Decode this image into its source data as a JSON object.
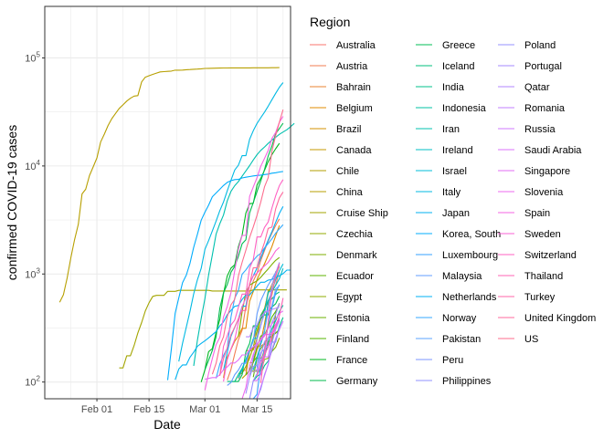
{
  "chart_data": {
    "type": "line",
    "xlabel": "Date",
    "ylabel": "confirmed COVID-19 cases",
    "xscale": "date",
    "yscale": "log10",
    "xlim": [
      "2020-01-18",
      "2020-03-24"
    ],
    "ylim": [
      70,
      300000
    ],
    "x_ticks": [
      {
        "date": "2020-02-01",
        "label": "Feb 01"
      },
      {
        "date": "2020-02-15",
        "label": "Feb 15"
      },
      {
        "date": "2020-03-01",
        "label": "Mar 01"
      },
      {
        "date": "2020-03-15",
        "label": "Mar 15"
      }
    ],
    "y_ticks": [
      {
        "value": 100,
        "base": "10",
        "exp": "2"
      },
      {
        "value": 1000,
        "base": "10",
        "exp": "3"
      },
      {
        "value": 10000,
        "base": "10",
        "exp": "4"
      },
      {
        "value": 100000,
        "base": "10",
        "exp": "5"
      }
    ],
    "grid": true,
    "legend": {
      "title": "Region",
      "position": "right",
      "columns": 3
    },
    "series": [
      {
        "name": "Australia",
        "color": "#F8766D",
        "start": "2020-03-10",
        "values": [
          107,
          128,
          128,
          200,
          250,
          297,
          377,
          452,
          568,
          681,
          791,
          1071
        ]
      },
      {
        "name": "Austria",
        "color": "#F27D52",
        "start": "2020-03-07",
        "values": [
          104,
          131,
          182,
          246,
          302,
          504,
          655,
          860,
          1018,
          1332,
          1646,
          2013,
          2388,
          2814,
          3244
        ]
      },
      {
        "name": "Bahrain",
        "color": "#EA8331",
        "start": "2020-03-12",
        "values": [
          195,
          195,
          210,
          214,
          214,
          228,
          256,
          278,
          285,
          305
        ]
      },
      {
        "name": "Belgium",
        "color": "#E08B00",
        "start": "2020-03-06",
        "values": [
          109,
          169,
          200,
          239,
          267,
          314,
          314,
          559,
          689,
          886,
          1058,
          1243,
          1486,
          1795,
          2257,
          2815
        ]
      },
      {
        "name": "Brazil",
        "color": "#D39200",
        "start": "2020-03-13",
        "values": [
          151,
          151,
          200,
          234,
          346,
          529,
          640,
          970,
          1178
        ]
      },
      {
        "name": "Canada",
        "color": "#C49A00",
        "start": "2020-03-11",
        "values": [
          108,
          117,
          193,
          198,
          252,
          415,
          478,
          657,
          800,
          943,
          1277
        ]
      },
      {
        "name": "Chile",
        "color": "#B39F00",
        "start": "2020-03-16",
        "values": [
          156,
          201,
          238,
          238,
          434,
          537
        ]
      },
      {
        "name": "China",
        "color": "#B79F00",
        "start": "2020-01-22",
        "values": [
          548,
          643,
          920,
          1406,
          2075,
          2877,
          5509,
          6087,
          8141,
          9802,
          11891,
          16630,
          19716,
          23707,
          27440,
          30587,
          34110,
          36814,
          39829,
          42354,
          44386,
          44759,
          59895,
          66358,
          68413,
          70513,
          72434,
          74211,
          74619,
          75077,
          75550,
          77001,
          77022,
          77241,
          77754,
          78166,
          78600,
          78928,
          79356,
          79932,
          80136,
          80261,
          80386,
          80537,
          80690,
          80770,
          80823,
          80860,
          80887,
          80921,
          80932,
          80945,
          80977,
          81003,
          81033,
          81058,
          81102,
          81156,
          81250,
          81305
        ]
      },
      {
        "name": "Cruise Ship",
        "color": "#A3A500",
        "start": "2020-02-07",
        "values": [
          135,
          135,
          175,
          175,
          218,
          285,
          355,
          454,
          542,
          621,
          634,
          634,
          634,
          691,
          691,
          691,
          705,
          705,
          705,
          705,
          705,
          705,
          706,
          706,
          706,
          696,
          696,
          696,
          696,
          696,
          696,
          696,
          696,
          696,
          696,
          696,
          712,
          712,
          712,
          712,
          712,
          712,
          712,
          712,
          712,
          712
        ]
      },
      {
        "name": "Czechia",
        "color": "#93AA00",
        "start": "2020-03-10",
        "values": [
          120,
          120,
          140,
          166,
          210,
          298,
          383,
          464,
          692,
          764,
          1047,
          1161
        ]
      },
      {
        "name": "Denmark",
        "color": "#7CAE00",
        "start": "2020-03-10",
        "values": [
          264,
          448,
          674,
          789,
          827,
          864,
          932,
          1024,
          1115,
          1225,
          1337,
          1420
        ]
      },
      {
        "name": "Ecuador",
        "color": "#5EB300",
        "start": "2020-03-14",
        "values": [
          111,
          167,
          167,
          168,
          260,
          260,
          426,
          532
        ]
      },
      {
        "name": "Egypt",
        "color": "#8EAB00",
        "start": "2020-03-13",
        "values": [
          126,
          126,
          126,
          126,
          162,
          166,
          192,
          210,
          256
        ]
      },
      {
        "name": "Estonia",
        "color": "#6BB100",
        "start": "2020-03-13",
        "values": [
          115,
          154,
          171,
          205,
          225,
          258,
          267,
          283,
          306
        ]
      },
      {
        "name": "Finland",
        "color": "#53B400",
        "start": "2020-03-12",
        "values": [
          116,
          130,
          156,
          210,
          267,
          272,
          322,
          400,
          450,
          523
        ]
      },
      {
        "name": "France",
        "color": "#00B81F",
        "start": "2020-02-29",
        "values": [
          100,
          130,
          191,
          204,
          288,
          380,
          656,
          957,
          1134,
          1217,
          1792,
          2289,
          3672,
          4480,
          4513,
          6650,
          7699,
          9105,
          10947,
          12726,
          14431,
          16176
        ]
      },
      {
        "name": "Germany",
        "color": "#00BB4E",
        "start": "2020-03-01",
        "values": [
          130,
          159,
          196,
          262,
          482,
          670,
          799,
          1040,
          1176,
          1457,
          1908,
          2078,
          3675,
          4585,
          5795,
          7272,
          9257,
          12327,
          15320,
          19848,
          22213,
          24873
        ]
      },
      {
        "name": "Greece",
        "color": "#00BC56",
        "start": "2020-03-08",
        "values": [
          101,
          101,
          101,
          117,
          190,
          228,
          331,
          331,
          387,
          418,
          418,
          495,
          530,
          624
        ]
      },
      {
        "name": "Iceland",
        "color": "#00BF7D",
        "start": "2020-03-07",
        "values": [
          101,
          101,
          101,
          117,
          134,
          161,
          199,
          250,
          330,
          409,
          473,
          568,
          588,
          648,
          683
        ]
      },
      {
        "name": "India",
        "color": "#00C08B",
        "start": "2020-03-14",
        "values": [
          102,
          113,
          119,
          142,
          156,
          194,
          244,
          330,
          396
        ]
      },
      {
        "name": "Indonesia",
        "color": "#00C1A3",
        "start": "2020-03-15",
        "values": [
          117,
          134,
          172,
          227,
          311,
          369,
          450,
          514
        ]
      },
      {
        "name": "Iran",
        "color": "#00C0AF",
        "start": "2020-02-27",
        "values": [
          141,
          245,
          388,
          593,
          978,
          1501,
          2336,
          2922,
          3513,
          4747,
          5823,
          6566,
          7161,
          8042,
          9000,
          10075,
          11364,
          12729,
          13938,
          14991,
          16169,
          17361,
          18407,
          19644,
          20610,
          21638,
          23049,
          24811
        ]
      },
      {
        "name": "Ireland",
        "color": "#00BFC4",
        "start": "2020-03-14",
        "values": [
          129,
          169,
          223,
          292,
          557,
          683,
          785,
          906,
          1125
        ]
      },
      {
        "name": "Israel",
        "color": "#00BCD8",
        "start": "2020-03-10",
        "values": [
          109,
          131,
          161,
          193,
          251,
          255,
          337,
          433,
          677,
          705,
          883,
          1071,
          1238
        ]
      },
      {
        "name": "Italy",
        "color": "#00B9E3",
        "start": "2020-02-23",
        "values": [
          155,
          229,
          322,
          453,
          655,
          888,
          1128,
          1694,
          2036,
          2502,
          3089,
          3858,
          4636,
          5883,
          7375,
          9172,
          10149,
          12462,
          12462,
          17660,
          21157,
          24747,
          27980,
          31506,
          35713,
          41035,
          47021,
          53578,
          59138
        ]
      },
      {
        "name": "Japan",
        "color": "#00B2F0",
        "start": "2020-02-22",
        "values": [
          105,
          132,
          144,
          144,
          170,
          189,
          214,
          228,
          241,
          256,
          274,
          293,
          331,
          360,
          420,
          461,
          502,
          511,
          581,
          639,
          639,
          701,
          773,
          839,
          839,
          878,
          889,
          924,
          963,
          1007,
          1086,
          1086
        ]
      },
      {
        "name": "Korea, South",
        "color": "#00ACFC",
        "start": "2020-02-20",
        "values": [
          104,
          204,
          433,
          602,
          833,
          977,
          1261,
          1766,
          2337,
          3150,
          3736,
          4335,
          5186,
          5621,
          6088,
          6593,
          7041,
          7314,
          7478,
          7513,
          7755,
          7869,
          7979,
          8086,
          8162,
          8236,
          8320,
          8413,
          8565,
          8652,
          8799,
          8897
        ]
      },
      {
        "name": "Luxembourg",
        "color": "#35A2FF",
        "start": "2020-03-14",
        "values": [
          51,
          77,
          140,
          203,
          335,
          484,
          670,
          798
        ]
      },
      {
        "name": "Malaysia",
        "color": "#619CFF",
        "start": "2020-03-07",
        "values": [
          93,
          99,
          117,
          129,
          149,
          149,
          197,
          238,
          428,
          566,
          673,
          790,
          900,
          1030,
          1183
        ]
      },
      {
        "name": "Netherlands",
        "color": "#00B0F6",
        "start": "2020-03-06",
        "values": [
          128,
          188,
          265,
          321,
          382,
          503,
          503,
          806,
          962,
          1138,
          1416,
          1711,
          2058,
          2467,
          3003,
          3640,
          4217
        ]
      },
      {
        "name": "Norway",
        "color": "#33A8FF",
        "start": "2020-03-04",
        "values": [
          108,
          147,
          176,
          205,
          400,
          598,
          702,
          996,
          1090,
          1221,
          1333,
          1463,
          1550,
          1746,
          1914,
          2118,
          2385,
          2621,
          2863
        ]
      },
      {
        "name": "Pakistan",
        "color": "#5BA3FF",
        "start": "2020-03-15",
        "values": [
          136,
          236,
          299,
          454,
          501,
          730,
          776
        ]
      },
      {
        "name": "Peru",
        "color": "#7B96FF",
        "start": "2020-03-15",
        "values": [
          71,
          86,
          117,
          145,
          234,
          234,
          318,
          363
        ]
      },
      {
        "name": "Philippines",
        "color": "#8F91FF",
        "start": "2020-03-13",
        "values": [
          111,
          140,
          142,
          187,
          202,
          217,
          230,
          307,
          380
        ]
      },
      {
        "name": "Poland",
        "color": "#9590FF",
        "start": "2020-03-13",
        "values": [
          68,
          103,
          119,
          177,
          238,
          251,
          355,
          425,
          536
        ]
      },
      {
        "name": "Portugal",
        "color": "#A58AFF",
        "start": "2020-03-12",
        "values": [
          78,
          112,
          169,
          245,
          331,
          448,
          448,
          785,
          1020,
          1280
        ]
      },
      {
        "name": "Qatar",
        "color": "#B286FF",
        "start": "2020-03-12",
        "values": [
          262,
          262,
          320,
          337,
          401,
          439,
          460,
          470,
          481,
          494
        ]
      },
      {
        "name": "Romania",
        "color": "#C07FFF",
        "start": "2020-03-14",
        "values": [
          123,
          131,
          158,
          184,
          260,
          277,
          308,
          367
        ]
      },
      {
        "name": "Russia",
        "color": "#D078FF",
        "start": "2020-03-15",
        "values": [
          63,
          90,
          114,
          147,
          199,
          253,
          306,
          367
        ]
      },
      {
        "name": "Saudi Arabia",
        "color": "#DB72FB",
        "start": "2020-03-14",
        "values": [
          103,
          103,
          118,
          171,
          171,
          274,
          344,
          392
        ]
      },
      {
        "name": "Singapore",
        "color": "#E36EF6",
        "start": "2020-03-01",
        "values": [
          106,
          108,
          110,
          110,
          117,
          130,
          138,
          150,
          150,
          160,
          178,
          178,
          200,
          212,
          226,
          243,
          266,
          313,
          345,
          385,
          432,
          455
        ]
      },
      {
        "name": "Slovenia",
        "color": "#EC69EF",
        "start": "2020-03-11",
        "values": [
          57,
          89,
          141,
          181,
          219,
          253,
          275,
          275,
          286,
          341,
          383
        ]
      },
      {
        "name": "Spain",
        "color": "#F564E3",
        "start": "2020-03-01",
        "values": [
          84,
          120,
          165,
          222,
          259,
          400,
          500,
          673,
          1073,
          1695,
          2277,
          2277,
          5232,
          6391,
          7798,
          9942,
          11748,
          13910,
          17963,
          20410,
          25374,
          28768
        ]
      },
      {
        "name": "Sweden",
        "color": "#FA62D4",
        "start": "2020-03-06",
        "values": [
          101,
          161,
          203,
          248,
          355,
          500,
          599,
          814,
          961,
          1022,
          1103,
          1190,
          1279,
          1439,
          1639,
          1763
        ]
      },
      {
        "name": "Switzerland",
        "color": "#FF61C3",
        "start": "2020-03-05",
        "values": [
          114,
          214,
          268,
          337,
          374,
          491,
          652,
          652,
          1139,
          1359,
          2200,
          2200,
          2700,
          3028,
          4075,
          5294,
          6575,
          7474
        ]
      },
      {
        "name": "Thailand",
        "color": "#FF63B6",
        "start": "2020-03-15",
        "values": [
          114,
          147,
          177,
          212,
          272,
          322,
          411,
          599
        ]
      },
      {
        "name": "Turkey",
        "color": "#FF65A8",
        "start": "2020-03-16",
        "values": [
          98,
          191,
          359,
          670,
          947,
          1236
        ]
      },
      {
        "name": "United Kingdom",
        "color": "#FF689C",
        "start": "2020-03-05",
        "values": [
          116,
          164,
          207,
          274,
          322,
          384,
          459,
          459,
          802,
          1144,
          1145,
          1551,
          1960,
          2642,
          2716,
          4014,
          5067,
          5741
        ]
      },
      {
        "name": "US",
        "color": "#FD6D8E",
        "start": "2020-03-03",
        "values": [
          118,
          149,
          217,
          262,
          402,
          518,
          583,
          959,
          1281,
          1663,
          2179,
          2727,
          3499,
          4632,
          6421,
          7783,
          13677,
          19100,
          25489,
          33276
        ]
      }
    ]
  }
}
